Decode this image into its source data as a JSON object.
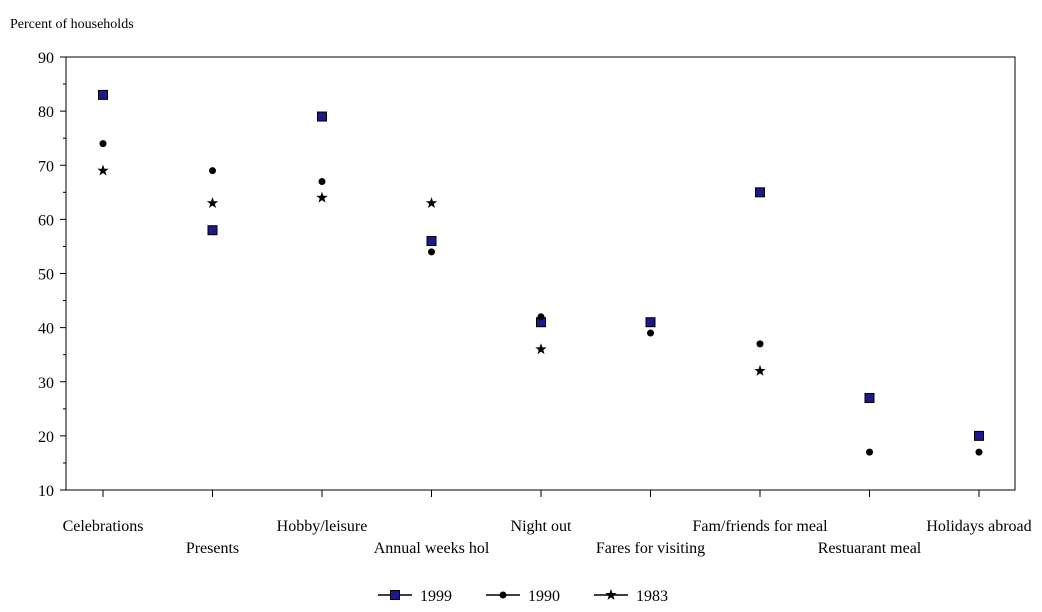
{
  "chart_data": {
    "type": "scatter",
    "ylabel": "Percent of households",
    "ylim": [
      10,
      90
    ],
    "yticks": [
      10,
      20,
      30,
      40,
      50,
      60,
      70,
      80,
      90
    ],
    "categories": [
      "Celebrations",
      "Presents",
      "Hobby/leisure",
      "Annual weeks hol",
      "Night out",
      "Fares for visiting",
      "Fam/friends for meal",
      "Restuarant meal",
      "Holidays abroad"
    ],
    "grid": false,
    "legend_position": "bottom-center",
    "series": [
      {
        "name": "1999",
        "marker": "square",
        "color": "#1a1a8c",
        "values": [
          83,
          58,
          79,
          56,
          41,
          41,
          65,
          27,
          20
        ]
      },
      {
        "name": "1990",
        "marker": "circle",
        "color": "#000000",
        "values": [
          74,
          69,
          67,
          54,
          42,
          39,
          37,
          17,
          17
        ]
      },
      {
        "name": "1983",
        "marker": "star",
        "color": "#000000",
        "values": [
          69,
          63,
          64,
          63,
          36,
          null,
          32,
          null,
          null
        ]
      }
    ]
  }
}
